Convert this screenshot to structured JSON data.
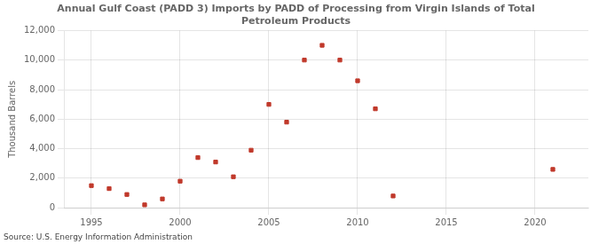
{
  "chart_data": {
    "type": "scatter",
    "title": "Annual Gulf Coast (PADD 3) Imports by PADD of Processing from Virgin Islands of Total\nPetroleum Products",
    "ylabel": "Thousand Barrels",
    "source": "Source: U.S. Energy Information Administration",
    "x": [
      1995,
      1996,
      1997,
      1998,
      1999,
      2000,
      2001,
      2002,
      2003,
      2004,
      2005,
      2006,
      2007,
      2008,
      2009,
      2010,
      2011,
      2012,
      2021
    ],
    "values": [
      1500,
      1300,
      900,
      200,
      600,
      1800,
      3400,
      3100,
      2100,
      3900,
      7000,
      5800,
      10000,
      11000,
      10000,
      8600,
      6700,
      800,
      2600
    ],
    "color": "#c0392b",
    "marker": "square",
    "xlim": [
      1993.5,
      2023
    ],
    "xticks": [
      1995,
      2000,
      2005,
      2010,
      2015,
      2020
    ],
    "ylim": [
      0,
      12000
    ],
    "yticks": [
      0,
      {
        "value": 2000,
        "label": "2,000"
      },
      {
        "value": 4000,
        "label": "4,000"
      },
      {
        "value": 6000,
        "label": "6,000"
      },
      {
        "value": 8000,
        "label": "8,000"
      },
      {
        "value": 10000,
        "label": "10,000"
      },
      {
        "value": 12000,
        "label": "12,000"
      }
    ],
    "grid": true
  }
}
